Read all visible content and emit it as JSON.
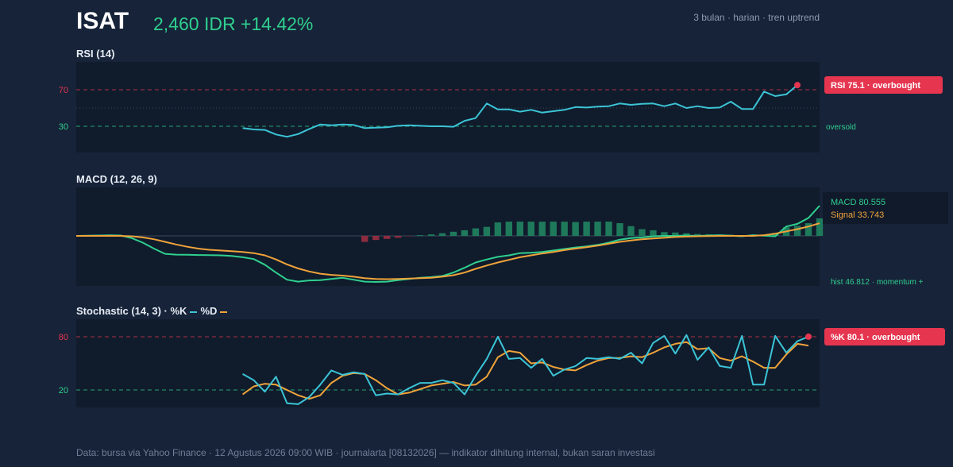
{
  "header": {
    "ticker": "ISAT",
    "price": "2,460 IDR +14.42%",
    "meta": "3 bulan · harian · tren uptrend"
  },
  "colors": {
    "background": "#172338",
    "panel": "#101c2c",
    "rsi": "#3bc4d6",
    "macd": "#2fcf8f",
    "signal": "#f0a33a",
    "overbought": "#e5354f",
    "oversold": "#2fcf8f",
    "hist_pos": "#1f7a5c",
    "hist_neg": "#8e2c3f"
  },
  "chart_data": [
    {
      "type": "line",
      "name": "rsi-panel",
      "title": "RSI (14)",
      "ylim": [
        0,
        100
      ],
      "yticks": [
        70,
        30
      ],
      "levels": [
        {
          "value": 70,
          "style": "overbought"
        },
        {
          "value": 50,
          "style": "mid"
        },
        {
          "value": 30,
          "style": "oversold",
          "label": "oversold"
        }
      ],
      "start_index": 15,
      "series": [
        {
          "key": "rsi",
          "color": "#3bc4d6",
          "values": [
            28,
            26.5,
            26,
            21,
            18.5,
            21.5,
            27,
            32,
            31,
            32,
            31.5,
            28,
            28.5,
            29,
            30.5,
            31,
            30.5,
            30,
            30,
            29.5,
            36,
            39,
            55,
            48.5,
            48.5,
            46,
            48,
            45,
            46.5,
            48,
            51,
            50.5,
            51.5,
            52,
            55,
            53.5,
            54.5,
            55,
            52,
            55,
            50,
            52,
            50,
            50.5,
            57,
            49,
            49,
            68,
            63,
            65,
            75.1
          ]
        }
      ],
      "badge": "RSI 75.1 · overbought"
    },
    {
      "type": "line",
      "name": "macd-panel",
      "title": "MACD (12, 26, 9)",
      "ylim": [
        -152,
        80.555
      ],
      "series": [
        {
          "key": "macd",
          "color": "#2fcf8f",
          "values": [
            0,
            0.5,
            1,
            1.5,
            1,
            -6,
            -18,
            -34,
            -48,
            -50,
            -50.5,
            -51,
            -51.5,
            -52,
            -53.5,
            -57,
            -62,
            -77,
            -98,
            -117,
            -122,
            -119,
            -118,
            -115,
            -112,
            -117,
            -122,
            -123,
            -122,
            -118,
            -115,
            -112,
            -110,
            -107,
            -98,
            -85,
            -71,
            -63,
            -56,
            -52,
            -46,
            -45,
            -43,
            -39,
            -35,
            -31,
            -28,
            -24,
            -18,
            -10,
            -6,
            -4,
            -1,
            0,
            0,
            1,
            0,
            1,
            2,
            0.5,
            -1,
            2,
            0.5,
            -1,
            25,
            32,
            48,
            80.555
          ]
        },
        {
          "key": "signal",
          "color": "#f0a33a",
          "values": [
            0,
            0,
            0,
            0,
            0,
            -1,
            -4,
            -9,
            -16,
            -23,
            -29,
            -34,
            -37,
            -39,
            -41,
            -43,
            -46,
            -52,
            -63,
            -76,
            -87,
            -95,
            -101,
            -104,
            -106,
            -109,
            -113,
            -115,
            -115.5,
            -115,
            -114,
            -113,
            -112,
            -109,
            -105,
            -98,
            -88,
            -79,
            -71,
            -64,
            -57,
            -52,
            -47,
            -43,
            -38,
            -34,
            -30,
            -26,
            -21,
            -16,
            -12,
            -9,
            -7,
            -5,
            -3,
            -2,
            -1,
            -0.5,
            0,
            0,
            0,
            0,
            2,
            6,
            12,
            18,
            25,
            33.743
          ]
        },
        {
          "key": "hist",
          "color": "#1f7a5c",
          "values": [
            null,
            null,
            null,
            null,
            null,
            null,
            null,
            null,
            null,
            null,
            null,
            null,
            null,
            null,
            null,
            null,
            null,
            null,
            null,
            null,
            null,
            null,
            null,
            null,
            null,
            null,
            -16,
            -11,
            -8,
            -5,
            -1,
            2,
            4,
            7,
            11,
            15,
            20,
            24,
            36,
            38,
            38,
            38,
            38,
            38,
            38,
            37,
            38,
            38,
            38,
            34,
            26,
            18,
            15,
            10,
            9,
            7,
            5,
            4,
            3,
            3,
            2,
            2,
            3,
            8,
            23,
            27,
            34,
            46.812
          ]
        }
      ],
      "labels": {
        "macd": "MACD 80.555",
        "signal": "Signal 33.743",
        "hist": "hist 46.812 · momentum +"
      }
    },
    {
      "type": "line",
      "name": "stoch-panel",
      "title": "Stochastic (14, 3)",
      "legend": [
        {
          "label": "%K",
          "color": "#3bc4d6"
        },
        {
          "label": "%D",
          "color": "#f0a33a"
        }
      ],
      "ylim": [
        0,
        100
      ],
      "yticks": [
        80,
        20
      ],
      "levels": [
        {
          "value": 80,
          "style": "overbought"
        },
        {
          "value": 20,
          "style": "oversold"
        }
      ],
      "start_index": 15,
      "series": [
        {
          "key": "k",
          "color": "#3bc4d6",
          "values": [
            38,
            31,
            18,
            35,
            5,
            4,
            12,
            26,
            42,
            37,
            40,
            38,
            14,
            16,
            15,
            22,
            28,
            28,
            31,
            28,
            15,
            36,
            55,
            80,
            55,
            56,
            45,
            55,
            36,
            43,
            47,
            56,
            55,
            57,
            55,
            62,
            50,
            73,
            81,
            61,
            82,
            54,
            68,
            47,
            45,
            81,
            26,
            26,
            81,
            62,
            75,
            80.1
          ]
        },
        {
          "key": "d",
          "color": "#f0a33a",
          "values": [
            15,
            24,
            27,
            26,
            20,
            14,
            10,
            14,
            28,
            36,
            39,
            38,
            31,
            22,
            15,
            17,
            21,
            25,
            27,
            29,
            25,
            26,
            35,
            57,
            64,
            62,
            50,
            51,
            46,
            43,
            42,
            48,
            53,
            56,
            56,
            58,
            57,
            62,
            68,
            72,
            74,
            66,
            67,
            56,
            53,
            58,
            52,
            45,
            45,
            60,
            72,
            70
          ]
        }
      ],
      "badge": "%K 80.1 · overbought"
    }
  ],
  "footer": "Data: bursa via Yahoo Finance · 12 Agustus 2026 09:00 WIB · journalarta [08132026] — indikator dihitung internal, bukan saran investasi"
}
